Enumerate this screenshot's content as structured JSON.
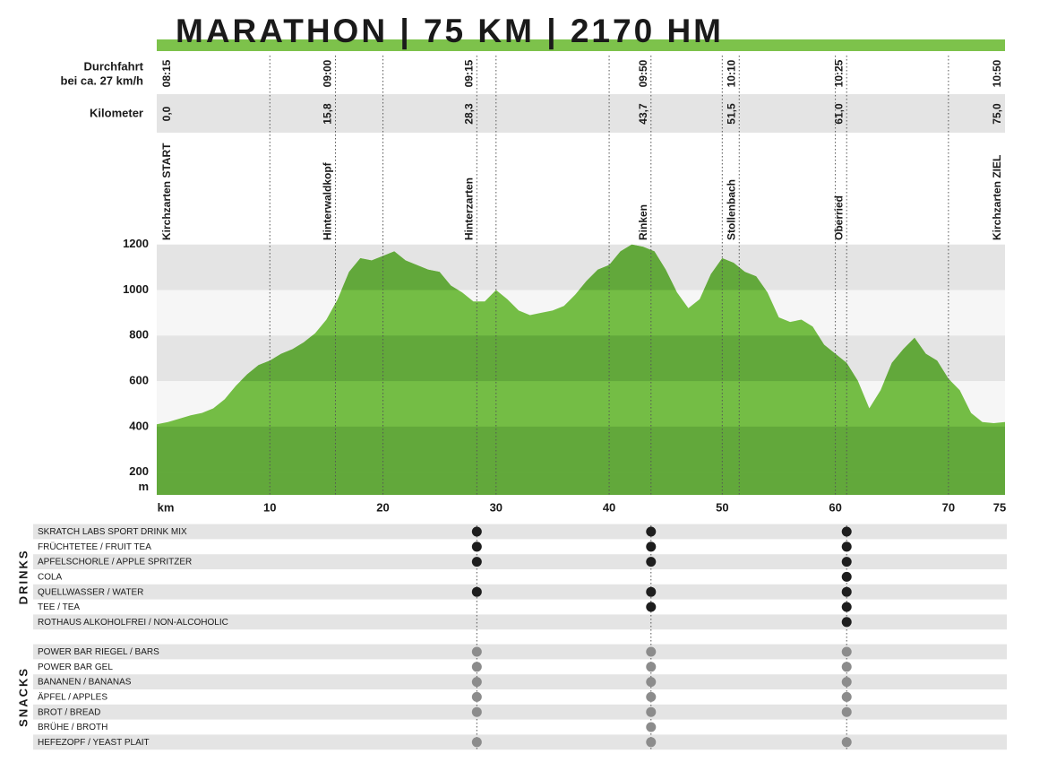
{
  "chart_data": {
    "type": "area",
    "title": "MARATHON | 75 KM | 2170 HM",
    "x_unit": "km",
    "y_unit": "m",
    "x": [
      0,
      1,
      2,
      3,
      4,
      5,
      6,
      7,
      8,
      9,
      10,
      11,
      12,
      13,
      14,
      15,
      16,
      17,
      18,
      19,
      20,
      21,
      22,
      23,
      24,
      25,
      26,
      27,
      28,
      29,
      30,
      31,
      32,
      33,
      34,
      35,
      36,
      37,
      38,
      39,
      40,
      41,
      42,
      43,
      44,
      45,
      46,
      47,
      48,
      49,
      50,
      51,
      52,
      53,
      54,
      55,
      56,
      57,
      58,
      59,
      60,
      61,
      62,
      63,
      64,
      65,
      66,
      67,
      68,
      69,
      70,
      71,
      72,
      73,
      74,
      75
    ],
    "values": [
      410,
      420,
      435,
      450,
      460,
      480,
      520,
      580,
      630,
      670,
      690,
      720,
      740,
      770,
      810,
      870,
      960,
      1080,
      1140,
      1130,
      1150,
      1170,
      1130,
      1110,
      1090,
      1080,
      1020,
      990,
      950,
      950,
      1000,
      960,
      910,
      890,
      900,
      910,
      930,
      980,
      1040,
      1090,
      1110,
      1170,
      1200,
      1190,
      1170,
      1090,
      990,
      920,
      960,
      1070,
      1140,
      1120,
      1080,
      1060,
      990,
      880,
      860,
      870,
      840,
      760,
      720,
      680,
      600,
      480,
      560,
      680,
      740,
      790,
      720,
      690,
      610,
      560,
      460,
      420,
      415,
      420
    ],
    "color": "#74bd45",
    "dark_color": "#62a83b",
    "xlim": [
      0,
      75
    ],
    "xticks": [
      10,
      20,
      30,
      40,
      50,
      60,
      70,
      75
    ],
    "ylim": [
      100,
      1400
    ],
    "yticks": [
      200,
      400,
      600,
      800,
      1000,
      1200
    ],
    "grid": true
  },
  "pass_label": [
    "Durchfahrt",
    "bei ca. 27 km/h"
  ],
  "km_label": "Kilometer",
  "stations": [
    {
      "time": "08:15",
      "km": {
        "value": 0,
        "label": "0,0"
      },
      "name": "Kirchzarten START"
    },
    {
      "time": "09:00",
      "km": {
        "value": 15.8,
        "label": "15,8"
      },
      "name": "Hinterwaldkopf"
    },
    {
      "time": "09:15",
      "km": {
        "value": 28.3,
        "label": "28,3"
      },
      "name": "Hinterzarten"
    },
    {
      "time": "09:50",
      "km": {
        "value": 43.7,
        "label": "43,7"
      },
      "name": "Rinken"
    },
    {
      "time": "10:10",
      "km": {
        "value": 51.5,
        "label": "51,5"
      },
      "name": "Stollenbach"
    },
    {
      "time": "10:25",
      "km": {
        "value": 61.0,
        "label": "61,0"
      },
      "name": "Oberried"
    },
    {
      "time": "10:50",
      "km": {
        "value": 75.0,
        "label": "75,0"
      },
      "name": "Kirchzarten ZIEL"
    }
  ],
  "drinks": {
    "title": "DRINKS",
    "dot_color": "#1e1e1e",
    "rows": [
      {
        "label": "SKRATCH LABS SPORT DRINK MIX",
        "available": [
          false,
          false,
          true,
          true,
          false,
          true,
          false
        ]
      },
      {
        "label": "FRÜCHTETEE / FRUIT TEA",
        "available": [
          false,
          false,
          true,
          true,
          false,
          true,
          false
        ]
      },
      {
        "label": "APFELSCHORLE / APPLE SPRITZER",
        "available": [
          false,
          false,
          true,
          true,
          false,
          true,
          false
        ]
      },
      {
        "label": "COLA",
        "available": [
          false,
          false,
          false,
          false,
          false,
          true,
          false
        ]
      },
      {
        "label": "QUELLWASSER / WATER",
        "available": [
          false,
          false,
          true,
          true,
          false,
          true,
          false
        ]
      },
      {
        "label": "TEE / TEA",
        "available": [
          false,
          false,
          false,
          true,
          false,
          true,
          false
        ]
      },
      {
        "label": "ROTHAUS ALKOHOLFREI / NON-ALCOHOLIC",
        "available": [
          false,
          false,
          false,
          false,
          false,
          true,
          false
        ]
      }
    ]
  },
  "snacks": {
    "title": "SNACKS",
    "dot_color": "#8c8c8c",
    "rows": [
      {
        "label": "POWER BAR RIEGEL / BARS",
        "available": [
          false,
          false,
          true,
          true,
          false,
          true,
          false
        ]
      },
      {
        "label": "POWER BAR GEL",
        "available": [
          false,
          false,
          true,
          true,
          false,
          true,
          false
        ]
      },
      {
        "label": "BANANEN / BANANAS",
        "available": [
          false,
          false,
          true,
          true,
          false,
          true,
          false
        ]
      },
      {
        "label": "ÄPFEL / APPLES",
        "available": [
          false,
          false,
          true,
          true,
          false,
          true,
          false
        ]
      },
      {
        "label": "BROT / BREAD",
        "available": [
          false,
          false,
          true,
          true,
          false,
          true,
          false
        ]
      },
      {
        "label": "BRÜHE / BROTH",
        "available": [
          false,
          false,
          false,
          true,
          false,
          false,
          false
        ]
      },
      {
        "label": "HEFEZOPF / YEAST PLAIT",
        "available": [
          false,
          false,
          true,
          true,
          false,
          true,
          false
        ]
      }
    ]
  }
}
